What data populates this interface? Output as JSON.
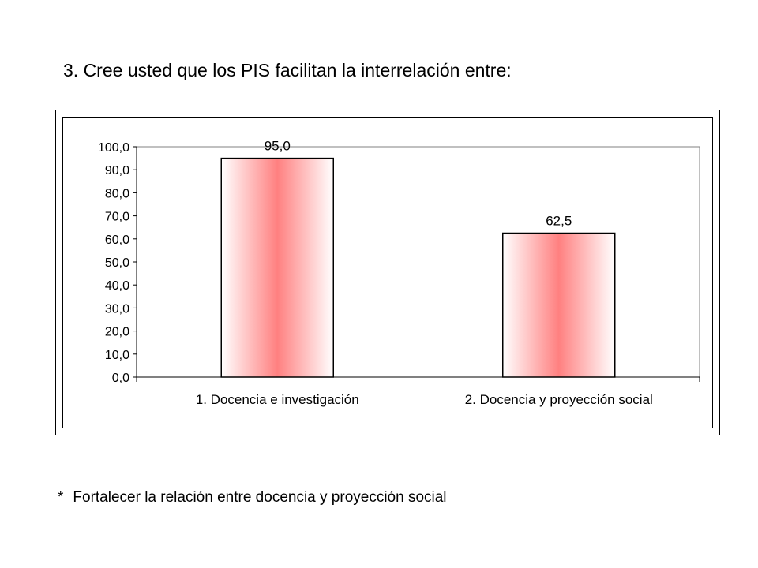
{
  "page": {
    "title": "3.  Cree usted que los PIS facilitan la interrelación entre:",
    "footnote_bullet": "*",
    "footnote": "Fortalecer la relación entre docencia y proyección social"
  },
  "chart_data": {
    "type": "bar",
    "categories": [
      "1.  Docencia e investigación",
      "2.  Docencia y proyección social"
    ],
    "values": [
      95.0,
      62.5
    ],
    "data_labels": [
      "95,0",
      "62,5"
    ],
    "y_tick_labels": [
      "0,0",
      "10,0",
      "20,0",
      "30,0",
      "40,0",
      "50,0",
      "60,0",
      "70,0",
      "80,0",
      "90,0",
      "100,0"
    ],
    "ylim": [
      0,
      100
    ],
    "ytick_step": 10,
    "grid": false,
    "legend": "none",
    "bar_color": "#ff8080",
    "bar_edge_color": "#ffffff",
    "plot_border_color": "#808080"
  }
}
